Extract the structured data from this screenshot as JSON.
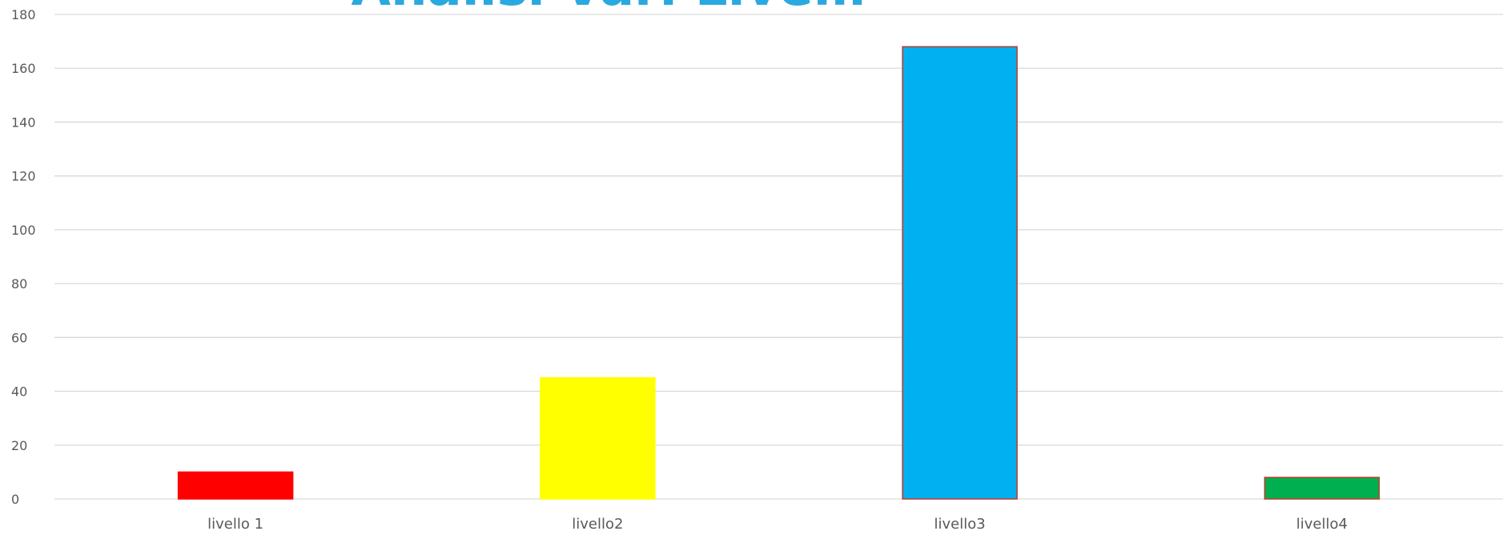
{
  "chart_data": {
    "type": "bar",
    "title": "Analisi Vari Livelli",
    "xlabel": "",
    "ylabel": "",
    "categories": [
      "livello 1",
      "livello2",
      "livello3",
      "livello4"
    ],
    "values": [
      10,
      45,
      168,
      8
    ],
    "bar_colors": [
      "#ff0000",
      "#ffff00",
      "#00b0f0",
      "#00b050"
    ],
    "bar_outline_colors": [
      "#ff0000",
      "#ffff00",
      "#c0392b",
      "#c0392b"
    ],
    "ylim": [
      0,
      180
    ],
    "yticks": [
      0,
      20,
      40,
      60,
      80,
      100,
      120,
      140,
      160,
      180
    ],
    "grid": true,
    "legend": "none",
    "title_color": "#29a9df"
  }
}
